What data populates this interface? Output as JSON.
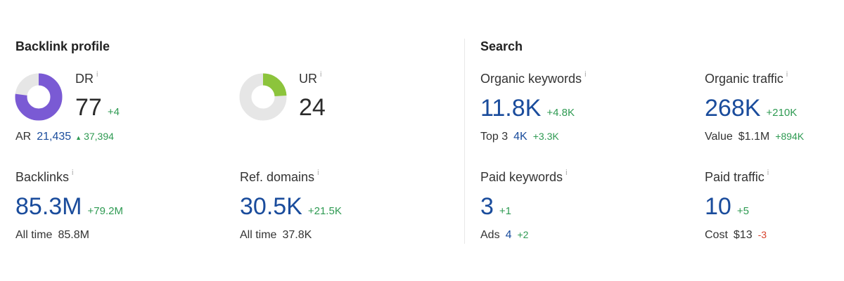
{
  "backlink_profile": {
    "title": "Backlink profile",
    "dr": {
      "label": "DR",
      "value": 77,
      "change": "+4"
    },
    "ar": {
      "label": "AR",
      "value": "21,435",
      "change": "37,394"
    },
    "ur": {
      "label": "UR",
      "value": 24
    },
    "backlinks": {
      "label": "Backlinks",
      "value": "85.3M",
      "change": "+79.2M",
      "sub_label": "All time",
      "sub_value": "85.8M"
    },
    "ref_domains": {
      "label": "Ref. domains",
      "value": "30.5K",
      "change": "+21.5K",
      "sub_label": "All time",
      "sub_value": "37.8K"
    }
  },
  "search": {
    "title": "Search",
    "organic_keywords": {
      "label": "Organic keywords",
      "value": "11.8K",
      "change": "+4.8K",
      "sub_label": "Top 3",
      "sub_value": "4K",
      "sub_change": "+3.3K"
    },
    "organic_traffic": {
      "label": "Organic traffic",
      "value": "268K",
      "change": "+210K",
      "sub_label": "Value",
      "sub_value": "$1.1M",
      "sub_change": "+894K"
    },
    "paid_keywords": {
      "label": "Paid keywords",
      "value": 3,
      "change": "+1",
      "sub_label": "Ads",
      "sub_value": 4,
      "sub_change": "+2"
    },
    "paid_traffic": {
      "label": "Paid traffic",
      "value": 10,
      "change": "+5",
      "sub_label": "Cost",
      "sub_value": "$13",
      "sub_change": "-3"
    }
  },
  "info_icon": "i"
}
